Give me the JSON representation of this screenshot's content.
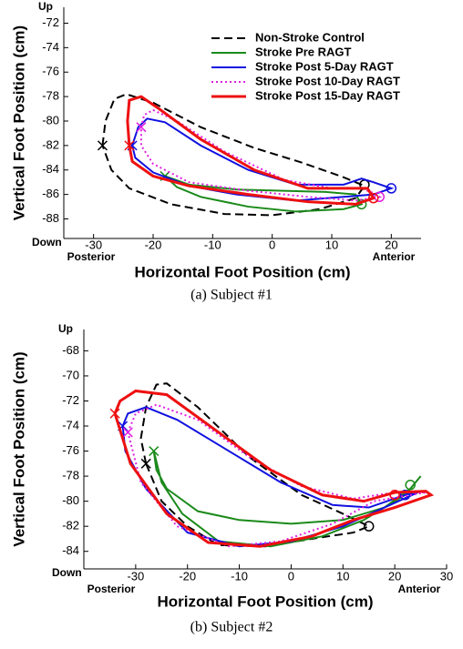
{
  "chart_data": [
    {
      "type": "line",
      "caption": "(a) Subject #1",
      "xlabel": "Horizontal Foot Position (cm)",
      "ylabel": "Vertical Foot Position (cm)",
      "x_left_label": "Posterior",
      "x_right_label": "Anterior",
      "y_top_label": "Up",
      "y_bottom_label": "Down",
      "xlim": [
        -35,
        25
      ],
      "xticks": [
        -30,
        -20,
        -10,
        0,
        10,
        20
      ],
      "ylim": [
        -89.6,
        -70.7
      ],
      "yticks": [
        -72,
        -74,
        -76,
        -78,
        -80,
        -82,
        -84,
        -86,
        -88
      ],
      "legend": "upper right",
      "series": [
        {
          "name": "Non-Stroke Control",
          "color": "#000000",
          "dash": "dashed",
          "x": [
            -28.5,
            -28,
            -26.5,
            -24.5,
            -20,
            -12,
            -3,
            5,
            12,
            15.5,
            14,
            8,
            0,
            -8,
            -17,
            -24,
            -27,
            -28.5
          ],
          "y": [
            -82,
            -80,
            -78.2,
            -77.8,
            -78.5,
            -80.5,
            -82.2,
            -83.4,
            -84.6,
            -85.3,
            -86.3,
            -87.2,
            -87.7,
            -87.6,
            -86.8,
            -85.5,
            -84,
            -82
          ],
          "x_marker": [
            -28.5,
            -82
          ],
          "o_marker": [
            15.5,
            -85.2
          ]
        },
        {
          "name": "Stroke Pre RAGT",
          "color": "#1a8a1a",
          "dash": "solid",
          "x": [
            -18,
            -14,
            -6,
            2,
            9,
            14,
            15,
            12,
            4,
            -4,
            -12,
            -16,
            -18
          ],
          "y": [
            -84.5,
            -85.2,
            -85.6,
            -85.7,
            -85.8,
            -86,
            -86.8,
            -87.2,
            -87.4,
            -87,
            -86.2,
            -85.4,
            -84.5
          ],
          "x_marker": [
            -18,
            -84.5
          ],
          "o_marker": [
            15,
            -86.8
          ]
        },
        {
          "name": "Stroke Post 5-Day RAGT",
          "color": "#1010e0",
          "dash": "solid",
          "x": [
            -23.5,
            -22.5,
            -21,
            -18,
            -12,
            -4,
            4,
            12,
            15,
            17,
            20,
            17,
            12,
            4,
            -6,
            -14,
            -20,
            -23,
            -23.5
          ],
          "y": [
            -82,
            -80.5,
            -79.8,
            -80.1,
            -82,
            -84,
            -85.2,
            -85.2,
            -84.7,
            -85,
            -85.5,
            -86,
            -86.2,
            -86.5,
            -86,
            -85.3,
            -84.2,
            -83,
            -82
          ],
          "x_marker": [
            -23.5,
            -82
          ],
          "o_marker": [
            20,
            -85.5
          ]
        },
        {
          "name": "Stroke Post 10-Day RAGT",
          "color": "#e020e0",
          "dash": "dotted",
          "x": [
            -22,
            -21.5,
            -20,
            -16,
            -8,
            2,
            10,
            15,
            17,
            18,
            14,
            6,
            -4,
            -14,
            -20,
            -22,
            -22
          ],
          "y": [
            -80.5,
            -79.5,
            -79.1,
            -80,
            -82.5,
            -84.8,
            -85.5,
            -85.5,
            -85.9,
            -86.2,
            -86.5,
            -86.2,
            -85.7,
            -85,
            -83.5,
            -82,
            -80.5
          ],
          "x_marker": [
            -22,
            -80.5
          ],
          "o_marker": [
            18,
            -86.2
          ]
        },
        {
          "name": "Stroke Post 15-Day RAGT",
          "color": "#ee1010",
          "dash": "solid",
          "width": 3,
          "x": [
            -24,
            -24.3,
            -24,
            -22,
            -19,
            -12,
            -3,
            6,
            12,
            16,
            17,
            14,
            6,
            -4,
            -14,
            -20,
            -23.5,
            -24
          ],
          "y": [
            -82,
            -80,
            -78.3,
            -78,
            -79,
            -81.5,
            -84,
            -85.5,
            -85.5,
            -85.5,
            -86.3,
            -86.8,
            -86.6,
            -86,
            -85.3,
            -84.5,
            -83.3,
            -82
          ],
          "x_marker": [
            -24,
            -82
          ],
          "o_marker": [
            17,
            -86.3
          ]
        }
      ]
    },
    {
      "type": "line",
      "caption": "(b) Subject #2",
      "xlabel": "Horizontal Foot Position (cm)",
      "ylabel": "Vertical Foot Position (cm)",
      "x_left_label": "Posterior",
      "x_right_label": "Anterior",
      "y_top_label": "Up",
      "y_bottom_label": "Down",
      "xlim": [
        -40,
        30
      ],
      "xticks": [
        -30,
        -20,
        -10,
        0,
        10,
        20,
        30
      ],
      "ylim": [
        -85.4,
        -66.3
      ],
      "yticks": [
        -68,
        -70,
        -72,
        -74,
        -76,
        -78,
        -80,
        -82,
        -84
      ],
      "series": [
        {
          "color": "#000000",
          "dash": "dashed",
          "x": [
            -28,
            -29,
            -28,
            -26,
            -24,
            -18,
            -8,
            2,
            10,
            15,
            12,
            4,
            -5,
            -14,
            -20,
            -25,
            -28
          ],
          "y": [
            -77,
            -75,
            -72.5,
            -70.7,
            -70.6,
            -72.5,
            -76.5,
            -79.5,
            -81,
            -82,
            -82.5,
            -83,
            -83.6,
            -83.5,
            -82,
            -80,
            -77
          ],
          "x_marker": [
            -28,
            -77
          ],
          "o_marker": [
            15,
            -82
          ]
        },
        {
          "color": "#1a8a1a",
          "dash": "solid",
          "x": [
            -26.5,
            -26,
            -24,
            -18,
            -10,
            0,
            10,
            18,
            23,
            25,
            22,
            14,
            6,
            -4,
            -14,
            -21,
            -25,
            -26.5
          ],
          "y": [
            -76,
            -77.5,
            -79,
            -80.8,
            -81.5,
            -81.8,
            -81.5,
            -80.5,
            -79,
            -78,
            -79.5,
            -81.5,
            -82.8,
            -83.6,
            -83.2,
            -81,
            -78.5,
            -76
          ],
          "x_marker": [
            -26.5,
            -76
          ],
          "o_marker": [
            23,
            -78.7
          ]
        },
        {
          "color": "#1010e0",
          "dash": "solid",
          "x": [
            -32.5,
            -31.5,
            -28,
            -22,
            -12,
            -2,
            8,
            15,
            22,
            25,
            18,
            10,
            0,
            -10,
            -20,
            -28,
            -32,
            -32.5
          ],
          "y": [
            -74,
            -73,
            -72.5,
            -73.5,
            -76,
            -78.5,
            -80.3,
            -80.5,
            -79.5,
            -79.2,
            -80.5,
            -82,
            -83.2,
            -83.6,
            -82.5,
            -79,
            -76,
            -74
          ],
          "x_marker": [
            -32.5,
            -74
          ],
          "o_marker": [
            22,
            -79.5
          ]
        },
        {
          "color": "#e020e0",
          "dash": "dotted",
          "x": [
            -31.5,
            -30,
            -26,
            -18,
            -8,
            2,
            12,
            20,
            26,
            16,
            8,
            -2,
            -12,
            -22,
            -29,
            -31.5
          ],
          "y": [
            -74.5,
            -73,
            -72.3,
            -73.5,
            -76.5,
            -78.8,
            -79.8,
            -79.3,
            -79.3,
            -80,
            -81.8,
            -83.2,
            -83.6,
            -82,
            -78.5,
            -74.5
          ],
          "x_marker": [
            -31.5,
            -74.5
          ],
          "o_marker": [
            20,
            -79.5
          ]
        },
        {
          "color": "#ee1010",
          "dash": "solid",
          "width": 3,
          "x": [
            -34,
            -33,
            -30,
            -24,
            -14,
            -4,
            6,
            14,
            20,
            26,
            27,
            20,
            12,
            4,
            -6,
            -16,
            -24,
            -31,
            -34
          ],
          "y": [
            -73,
            -72,
            -71.2,
            -71.5,
            -74.5,
            -77.5,
            -79.5,
            -80,
            -79.3,
            -79.2,
            -79.5,
            -80.5,
            -81.5,
            -82.8,
            -83.6,
            -83.3,
            -81,
            -77,
            -73
          ],
          "x_marker": [
            -34,
            -73
          ],
          "o_marker": [
            20,
            -79.5
          ]
        }
      ]
    }
  ]
}
